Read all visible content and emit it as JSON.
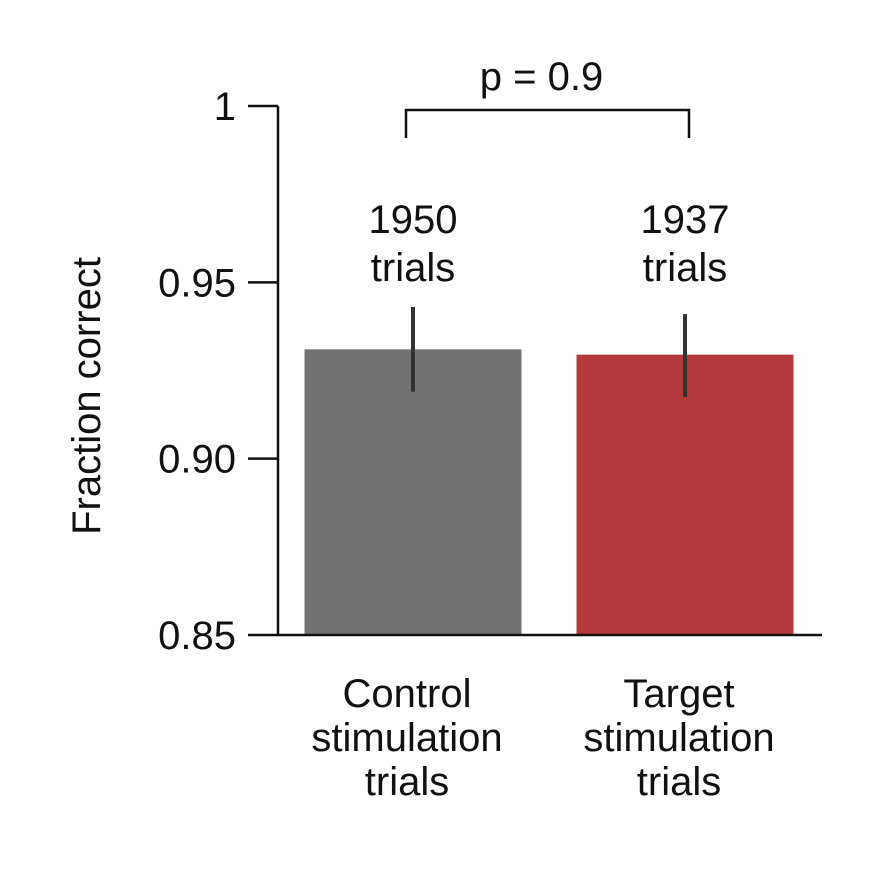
{
  "chart_data": {
    "type": "bar",
    "title": "",
    "xlabel": "",
    "ylabel": "Fraction correct",
    "ylim": [
      0.85,
      1.0
    ],
    "yticks": [
      {
        "value": 0.85,
        "label": "0.85"
      },
      {
        "value": 0.9,
        "label": "0.90"
      },
      {
        "value": 0.95,
        "label": "0.95"
      },
      {
        "value": 1.0,
        "label": "1"
      }
    ],
    "grid": false,
    "legend": "none",
    "categories": [
      {
        "lines": [
          "Control",
          "stimulation",
          "trials"
        ]
      },
      {
        "lines": [
          "Target",
          "stimulation",
          "trials"
        ]
      }
    ],
    "values": [
      0.931,
      0.9295
    ],
    "error": [
      {
        "low": 0.919,
        "high": 0.943
      },
      {
        "low": 0.9175,
        "high": 0.941
      }
    ],
    "colors": [
      "#737373",
      "#b33a3a"
    ],
    "annotations": [
      {
        "lines": [
          "1950",
          "trials"
        ]
      },
      {
        "lines": [
          "1937",
          "trials"
        ]
      }
    ],
    "significance": {
      "text": "p = 0.9",
      "between": [
        0,
        1
      ]
    }
  }
}
